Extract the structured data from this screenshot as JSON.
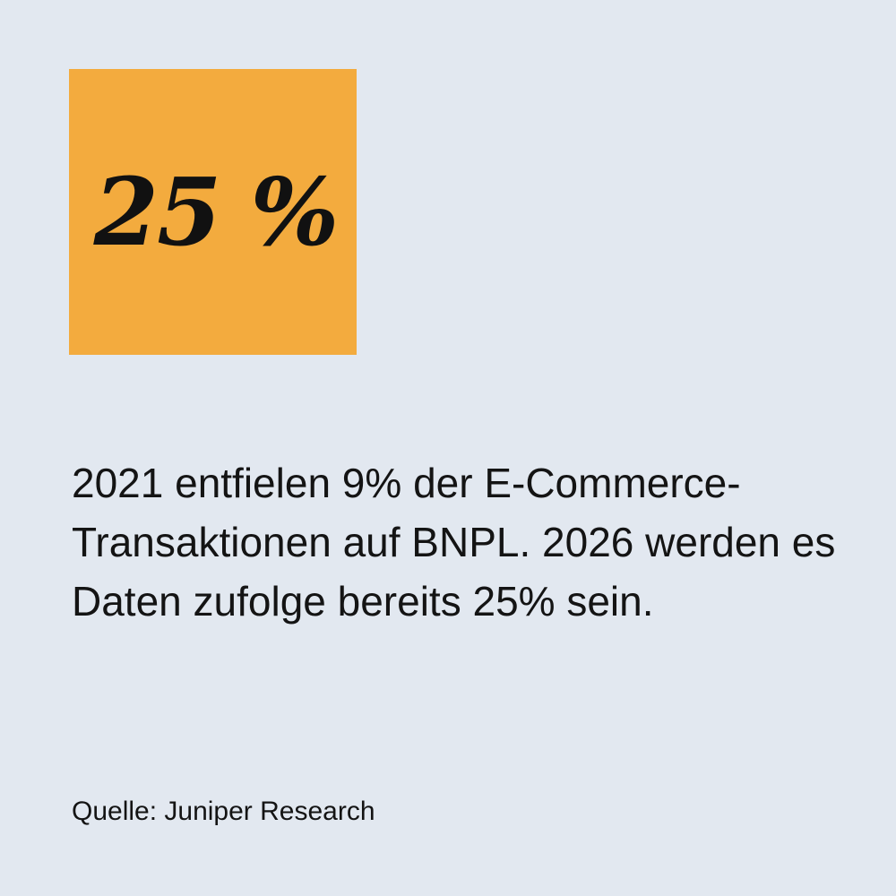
{
  "highlight": {
    "value": "25 %",
    "background": "#f3ab3e"
  },
  "description": {
    "text": "2021 entfielen 9% der E-Commerce-Transaktionen auf BNPL. 2026 werden es Daten zufolge bereits 25% sein."
  },
  "source": {
    "text": "Quelle: Juniper Research"
  },
  "colors": {
    "background": "#e2e8f0",
    "text": "#141414"
  }
}
